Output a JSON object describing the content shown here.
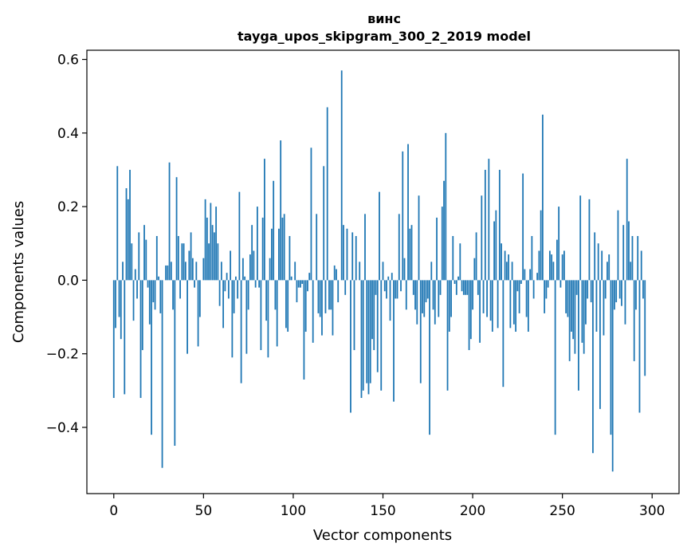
{
  "chart_data": {
    "type": "bar",
    "title": "винс",
    "subtitle": "tayga_upos_skipgram_300_2_2019 model",
    "xlabel": "Vector components",
    "ylabel": "Components values",
    "xlim": [
      -15,
      315
    ],
    "ylim": [
      -0.58,
      0.625
    ],
    "xticks": [
      0,
      50,
      100,
      150,
      200,
      250,
      300
    ],
    "yticks": [
      -0.4,
      -0.2,
      0.0,
      0.2,
      0.4,
      0.6
    ],
    "xtick_labels": [
      "0",
      "50",
      "100",
      "150",
      "200",
      "250",
      "300"
    ],
    "ytick_labels": [
      "−0.4",
      "−0.2",
      "0.0",
      "0.2",
      "0.4",
      "0.6"
    ],
    "grid": false,
    "legend": "none",
    "bar_color": "#1f77b4",
    "values": [
      -0.32,
      -0.13,
      0.31,
      -0.1,
      -0.16,
      0.05,
      -0.31,
      0.25,
      0.22,
      0.3,
      0.1,
      -0.11,
      0.03,
      -0.05,
      0.13,
      -0.32,
      -0.19,
      0.15,
      0.11,
      -0.02,
      -0.12,
      -0.42,
      -0.06,
      -0.08,
      0.12,
      0.01,
      -0.09,
      -0.51,
      0.0,
      0.04,
      0.04,
      0.32,
      0.05,
      -0.08,
      -0.45,
      0.28,
      0.12,
      -0.05,
      0.1,
      0.1,
      0.05,
      -0.2,
      0.08,
      0.13,
      0.06,
      -0.02,
      0.05,
      -0.18,
      -0.1,
      0.0,
      0.06,
      0.22,
      0.17,
      0.1,
      0.21,
      0.15,
      0.13,
      0.2,
      0.1,
      -0.07,
      0.05,
      -0.13,
      -0.03,
      0.02,
      -0.05,
      0.08,
      -0.21,
      -0.09,
      0.01,
      -0.05,
      0.24,
      -0.28,
      0.06,
      0.01,
      -0.2,
      -0.08,
      0.07,
      0.15,
      0.08,
      -0.02,
      0.2,
      -0.02,
      -0.19,
      0.17,
      0.33,
      -0.11,
      -0.21,
      0.06,
      0.14,
      0.27,
      -0.08,
      -0.18,
      0.14,
      0.38,
      0.17,
      0.18,
      -0.13,
      -0.14,
      0.12,
      0.01,
      0.0,
      0.05,
      -0.06,
      -0.02,
      -0.02,
      -0.01,
      -0.27,
      -0.14,
      -0.03,
      0.02,
      0.36,
      -0.17,
      0.0,
      0.18,
      -0.09,
      -0.1,
      -0.15,
      0.31,
      -0.09,
      0.47,
      -0.08,
      -0.08,
      -0.15,
      0.04,
      0.03,
      -0.06,
      0.0,
      0.57,
      0.15,
      -0.04,
      0.14,
      0.0,
      -0.36,
      0.13,
      -0.19,
      0.12,
      0.0,
      0.05,
      -0.32,
      -0.3,
      0.18,
      -0.28,
      -0.31,
      -0.28,
      -0.16,
      -0.19,
      -0.04,
      -0.25,
      0.24,
      -0.3,
      0.05,
      -0.03,
      -0.05,
      0.01,
      -0.11,
      0.02,
      -0.33,
      -0.05,
      -0.05,
      0.18,
      -0.03,
      0.35,
      0.06,
      -0.08,
      0.37,
      0.14,
      0.15,
      -0.04,
      -0.08,
      -0.12,
      0.23,
      -0.28,
      -0.09,
      -0.1,
      -0.06,
      -0.05,
      -0.42,
      0.05,
      -0.08,
      -0.12,
      0.17,
      -0.1,
      -0.04,
      0.2,
      0.27,
      0.4,
      -0.3,
      -0.14,
      -0.1,
      0.12,
      -0.01,
      -0.04,
      0.01,
      0.1,
      -0.03,
      -0.04,
      -0.04,
      -0.04,
      -0.19,
      -0.16,
      -0.08,
      0.06,
      0.13,
      -0.04,
      -0.17,
      0.23,
      -0.09,
      0.3,
      -0.1,
      0.33,
      -0.11,
      -0.14,
      0.16,
      0.19,
      -0.13,
      0.3,
      0.1,
      -0.29,
      0.08,
      0.05,
      0.07,
      -0.13,
      0.05,
      -0.12,
      -0.14,
      -0.03,
      -0.09,
      -0.01,
      0.29,
      0.03,
      -0.1,
      -0.14,
      0.03,
      0.12,
      -0.05,
      0.0,
      0.02,
      0.08,
      0.19,
      0.45,
      -0.09,
      -0.05,
      -0.02,
      0.08,
      0.07,
      0.05,
      -0.42,
      0.11,
      0.2,
      -0.02,
      0.07,
      0.08,
      -0.09,
      -0.1,
      -0.22,
      -0.14,
      -0.16,
      -0.2,
      -0.04,
      -0.3,
      0.23,
      -0.17,
      -0.2,
      -0.12,
      -0.05,
      0.22,
      -0.06,
      -0.47,
      0.13,
      -0.14,
      0.1,
      -0.35,
      0.08,
      -0.15,
      -0.05,
      0.05,
      0.07,
      -0.42,
      -0.52,
      -0.08,
      -0.06,
      0.19,
      -0.05,
      -0.07,
      0.15,
      -0.12,
      0.33,
      0.16,
      0.05,
      0.12,
      -0.22,
      -0.08,
      0.12,
      -0.36,
      0.08,
      -0.05,
      -0.26,
      0.0,
      0.0,
      0.0
    ]
  }
}
